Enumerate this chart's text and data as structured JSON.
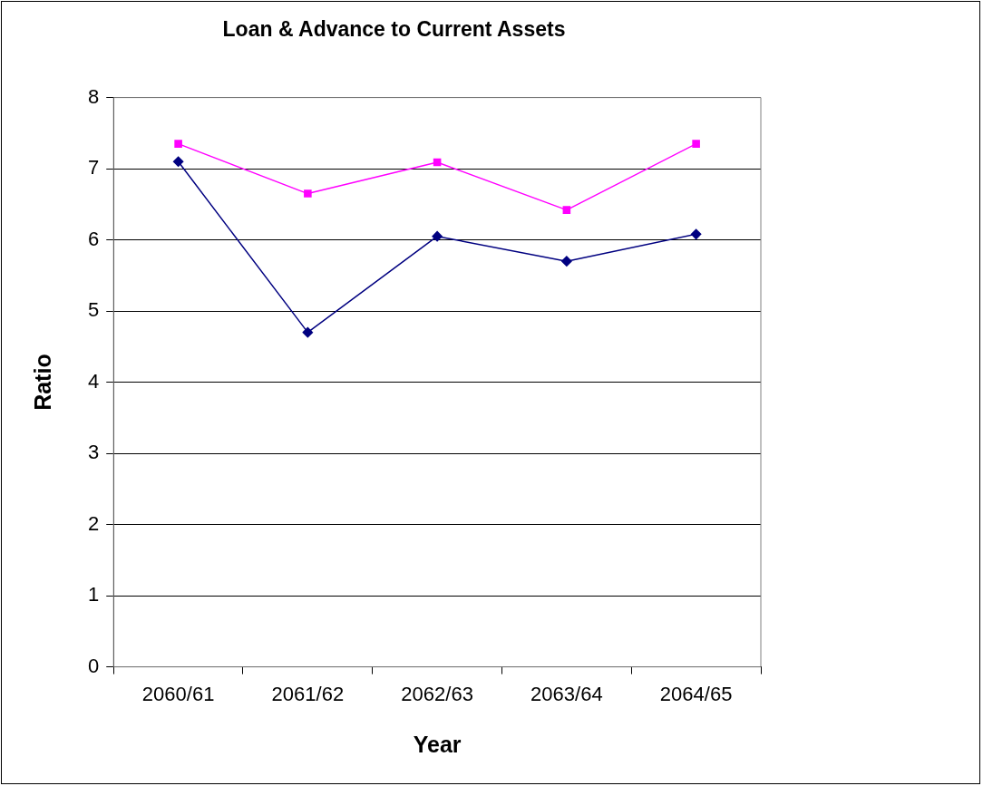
{
  "chart_data": {
    "type": "line",
    "title": "Loan & Advance to Current Assets",
    "xlabel": "Year",
    "ylabel": "Ratio",
    "categories": [
      "2060/61",
      "2061/62",
      "2062/63",
      "2063/64",
      "2064/65"
    ],
    "series": [
      {
        "color": "#000080",
        "marker": "diamond",
        "values": [
          7.1,
          4.7,
          6.05,
          5.7,
          6.08
        ]
      },
      {
        "color": "#ff00ff",
        "marker": "square",
        "values": [
          7.35,
          6.65,
          7.09,
          6.42,
          7.35
        ]
      }
    ],
    "ylim": [
      0,
      8
    ],
    "yticks": [
      0,
      1,
      2,
      3,
      4,
      5,
      6,
      7,
      8
    ],
    "grid": "y",
    "legend": false,
    "line_style": "solid"
  }
}
